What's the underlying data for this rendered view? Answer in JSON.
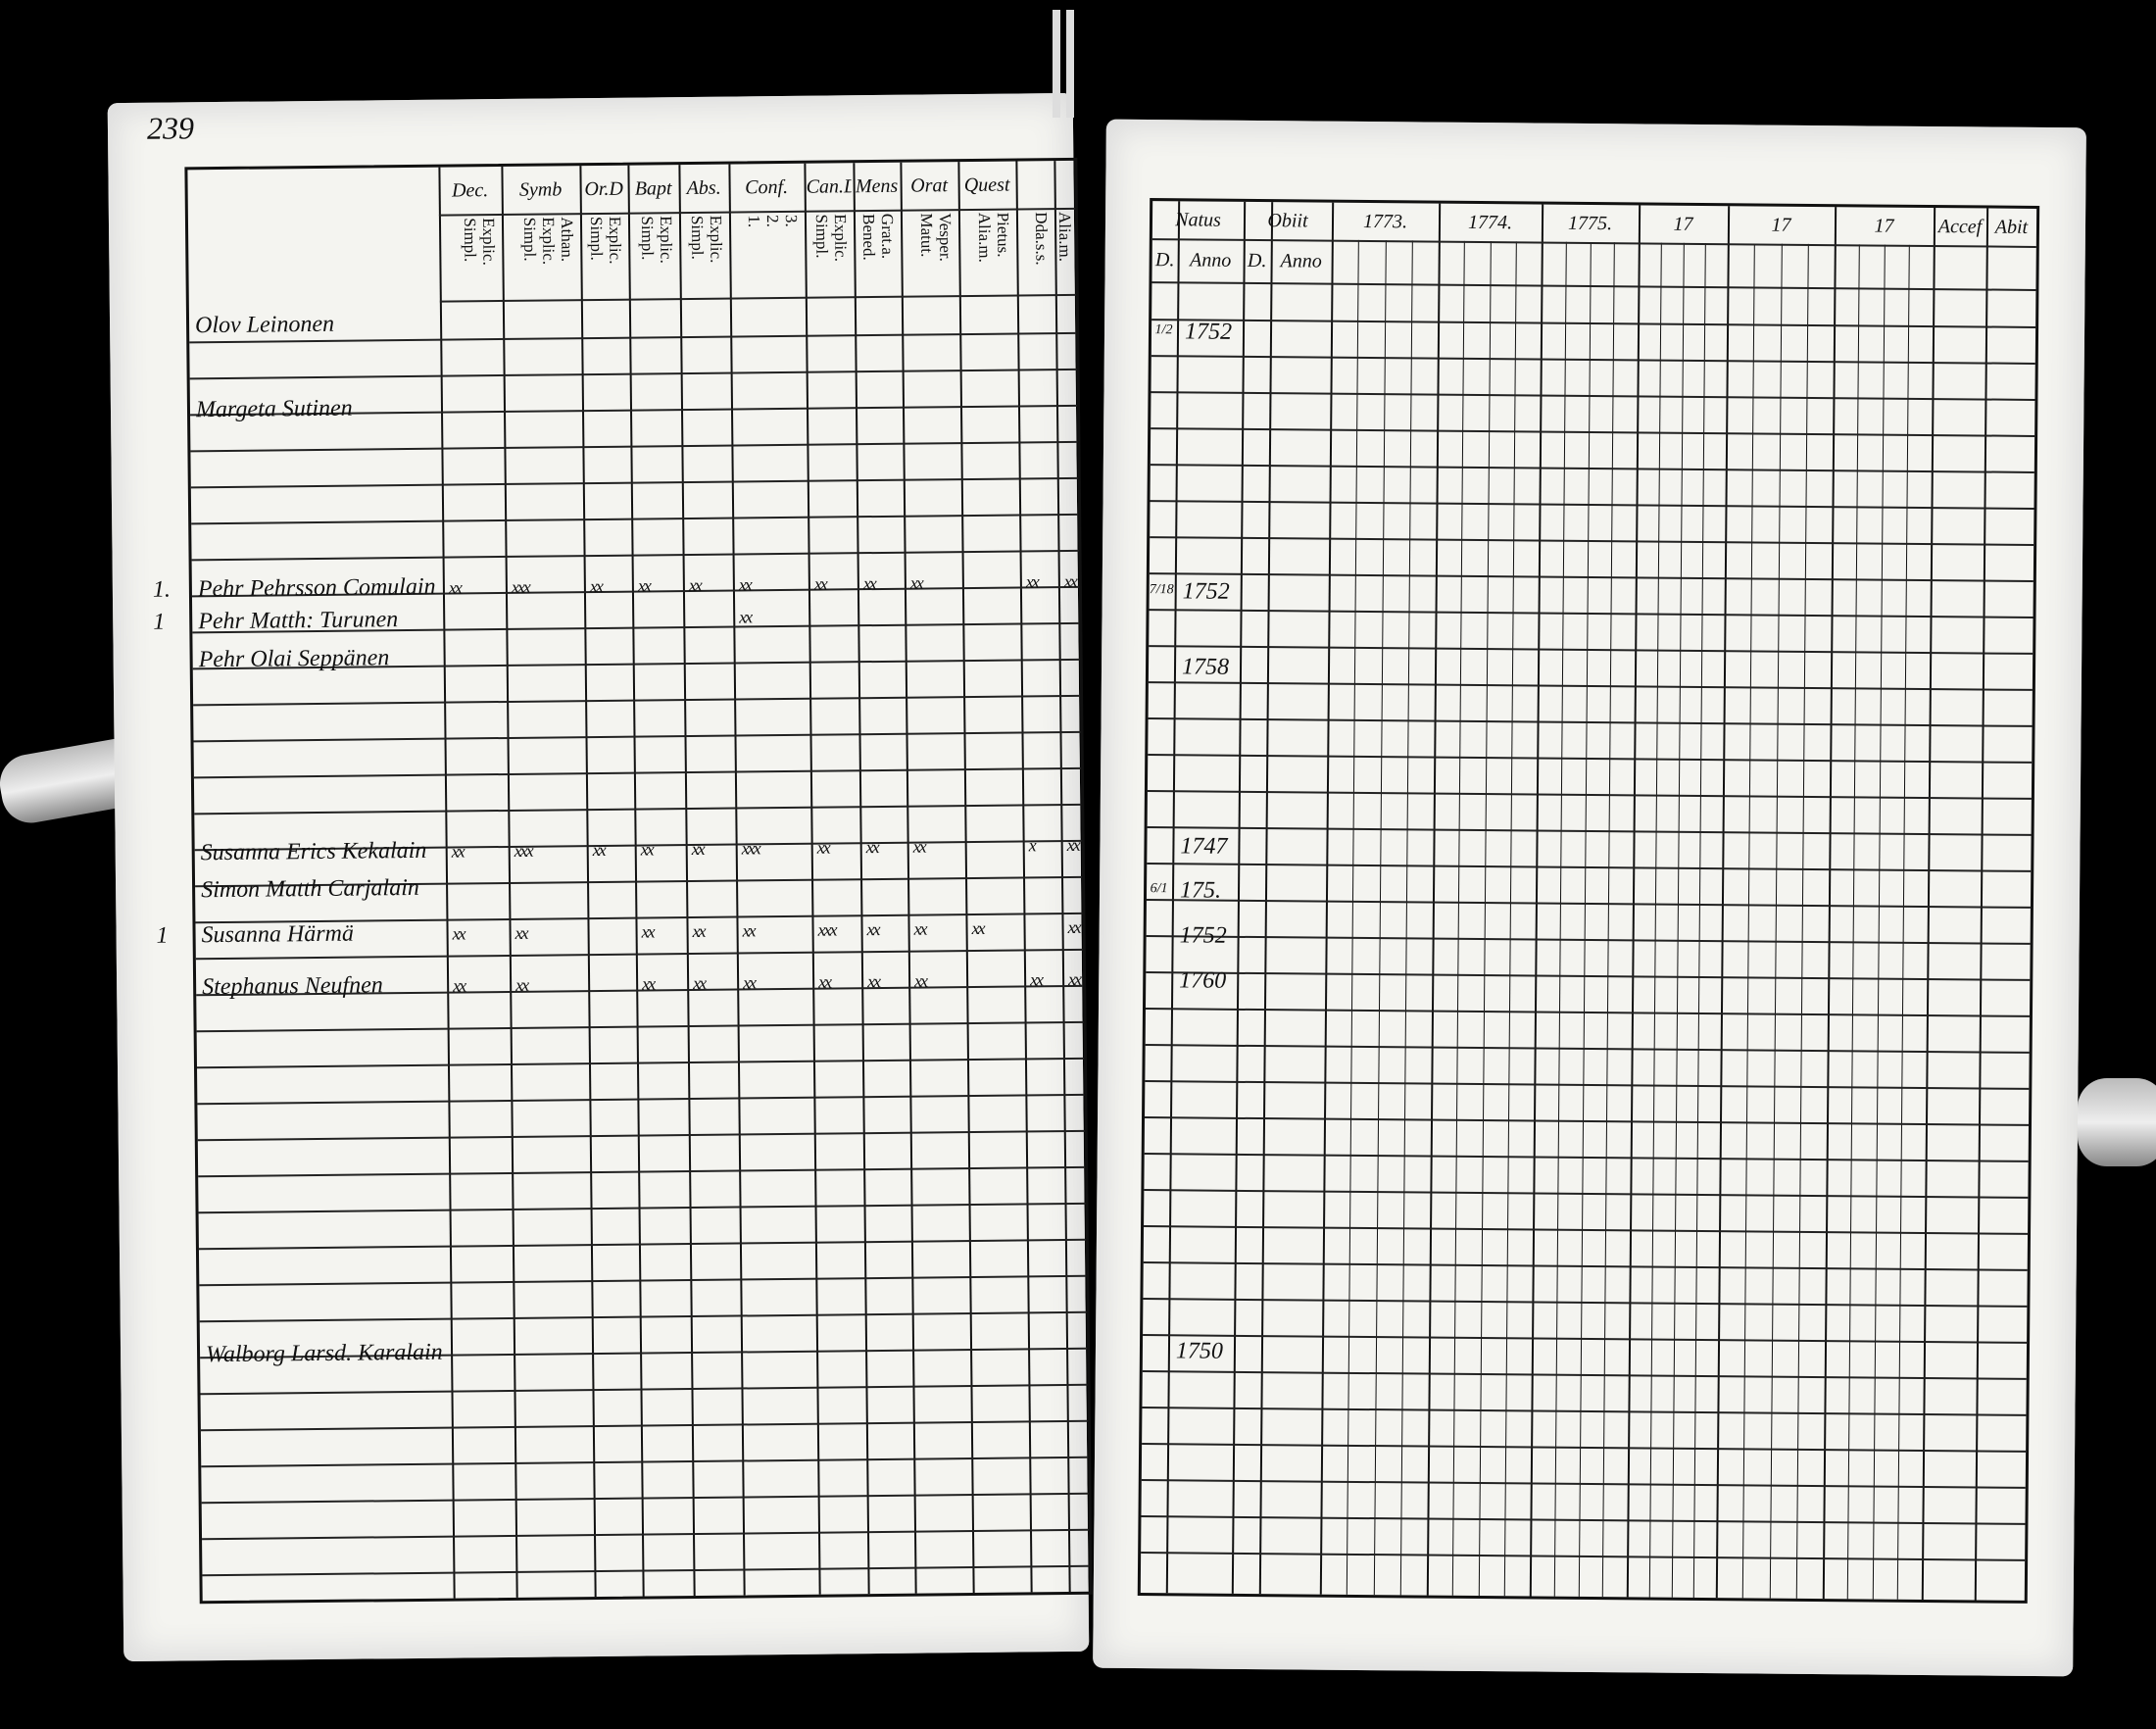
{
  "page_number": "239",
  "left": {
    "columns": [
      {
        "head": "Dec.",
        "sub": "Explic.\nSimpl."
      },
      {
        "head": "Symb",
        "sub": "Athan.\nExplic.\nSimpl."
      },
      {
        "head": "Or.D",
        "sub": "Explic.\nSimpl."
      },
      {
        "head": "Bapt",
        "sub": "Explic.\nSimpl."
      },
      {
        "head": "Abs.",
        "sub": "Explic.\nSimpl."
      },
      {
        "head": "Conf.",
        "sub": "3.\n2.\n1."
      },
      {
        "head": "Can.D",
        "sub": "Explic.\nSimpl."
      },
      {
        "head": "Mens",
        "sub": "Grat.a.\nBened."
      },
      {
        "head": "Orat",
        "sub": "Vesper.\nMatut."
      },
      {
        "head": "Quest",
        "sub": "Pietus.\nAlia.m."
      },
      {
        "head": "",
        "sub": "Dda.s.s."
      },
      {
        "head": "",
        "sub": "Alia.m."
      }
    ],
    "persons": [
      {
        "no": "",
        "name": "Olov Leinonen",
        "marks": []
      },
      {
        "no": "",
        "name": "Margeta Sutinen",
        "marks": []
      },
      {
        "no": "1.",
        "name": "Pehr Pehrsson Comulain",
        "marks": [
          "xx",
          "xxx",
          "xx",
          "xx",
          "xx",
          "xx",
          "xx",
          "xx",
          "xx",
          "",
          "xx",
          "xx"
        ]
      },
      {
        "no": "1",
        "name": "Pehr Matth: Turunen",
        "marks": [
          "",
          "",
          "",
          "",
          "",
          "xx",
          "",
          "",
          "",
          "",
          "",
          ""
        ]
      },
      {
        "no": "",
        "name": "Pehr Olai Seppänen",
        "marks": []
      },
      {
        "no": "",
        "name": "Susanna Erics Kekalain",
        "marks": [
          "xx",
          "xxx",
          "xx",
          "xx",
          "xx",
          "xxx",
          "xx",
          "xx",
          "xx",
          "",
          "x",
          "xx"
        ]
      },
      {
        "no": "",
        "name": "Simon Matth Carjalain",
        "marks": []
      },
      {
        "no": "1",
        "name": "Susanna Härmä",
        "marks": [
          "xx",
          "xx",
          "",
          "xx",
          "xx",
          "xx",
          "xxx",
          "xx",
          "xx",
          "xx",
          "",
          "xx"
        ]
      },
      {
        "no": "",
        "name": "Stephanus Neufnen",
        "marks": [
          "xx",
          "xx",
          "",
          "xx",
          "xx",
          "xx",
          "xx",
          "xx",
          "xx",
          "",
          "xx",
          "xx"
        ]
      },
      {
        "no": "",
        "name": "Walborg Larsd. Karalain",
        "marks": []
      }
    ]
  },
  "right": {
    "headers": [
      "Natus",
      "Obiit",
      "1773.",
      "1774.",
      "1775.",
      "17",
      "17",
      "17",
      "Accef",
      "Abit"
    ],
    "subheaders": [
      "D.",
      "Anno",
      "D.",
      "Anno"
    ],
    "births": [
      {
        "day": "1/2",
        "anno": "1752"
      },
      {
        "day": "7/18",
        "anno": "1752"
      },
      {
        "day": "",
        "anno": "1758"
      },
      {
        "day": "",
        "anno": "1747"
      },
      {
        "day": "6/1",
        "anno": "175."
      },
      {
        "day": "",
        "anno": "1752"
      },
      {
        "day": "",
        "anno": "1760"
      },
      {
        "day": "",
        "anno": "1750"
      }
    ]
  }
}
